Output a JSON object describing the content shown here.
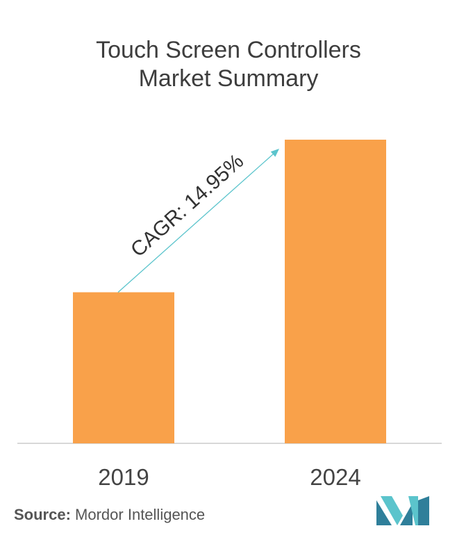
{
  "title_line1": "Touch Screen Controllers",
  "title_line2": "Market Summary",
  "chart_data": {
    "type": "bar",
    "categories": [
      "2019",
      "2024"
    ],
    "values": [
      1.0,
      2.01
    ],
    "annotation": "CAGR: 14.95%",
    "colors": {
      "bar": "#f9a14a",
      "arrow": "#5bc4cc",
      "axis": "#cccccc"
    }
  },
  "source": {
    "label": "Source:",
    "text": "Mordor Intelligence"
  }
}
